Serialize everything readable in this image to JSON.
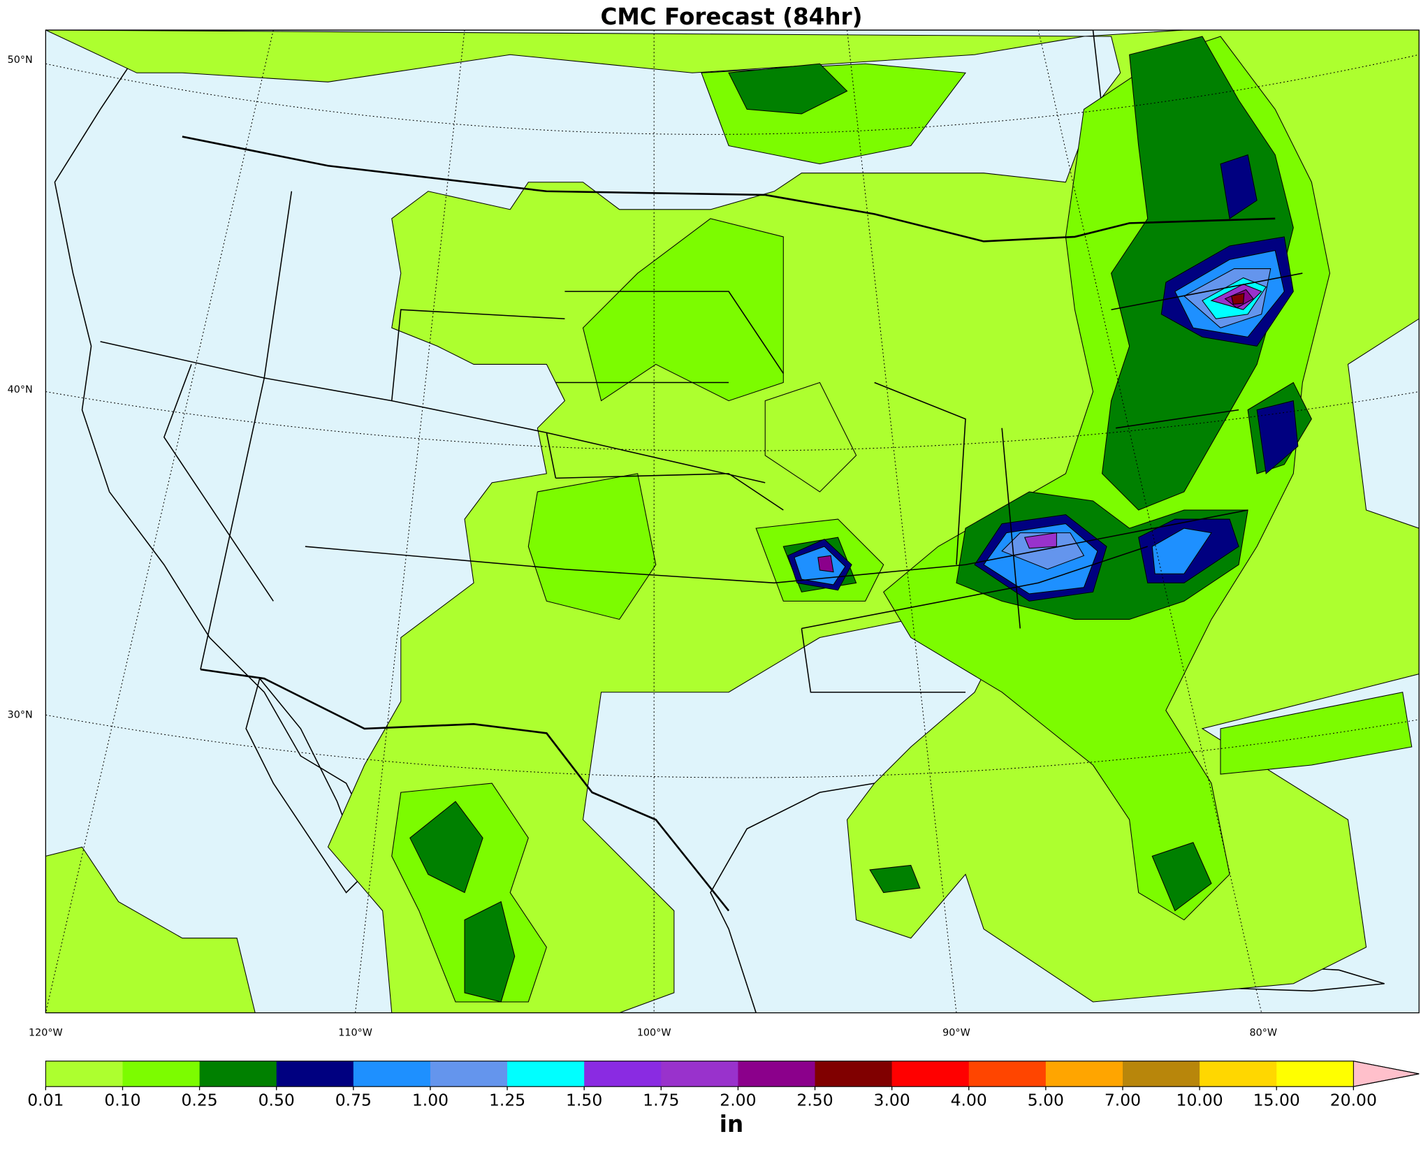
{
  "map": {
    "title": "CMC Forecast (84hr)",
    "lat_labels": [
      "50°N",
      "40°N",
      "30°N"
    ],
    "lon_labels": [
      "120°W",
      "110°W",
      "100°W",
      "90°W",
      "80°W"
    ],
    "colorbar": {
      "ticks": [
        "0.01",
        "0.10",
        "0.25",
        "0.50",
        "0.75",
        "1.00",
        "1.25",
        "1.50",
        "1.75",
        "2.00",
        "2.50",
        "3.00",
        "4.00",
        "5.00",
        "7.00",
        "10.00",
        "15.00",
        "20.00"
      ],
      "colors": [
        "#adff2f",
        "#7cfc00",
        "#008000",
        "#000080",
        "#1e90ff",
        "#6495ed",
        "#00ffff",
        "#8a2be2",
        "#9932cc",
        "#8b008b",
        "#800000",
        "#ff0000",
        "#ff4500",
        "#ffa500",
        "#b8860b",
        "#ffd700",
        "#ffff00"
      ],
      "extend_color": "#ffc0cb",
      "unit": "in"
    }
  }
}
